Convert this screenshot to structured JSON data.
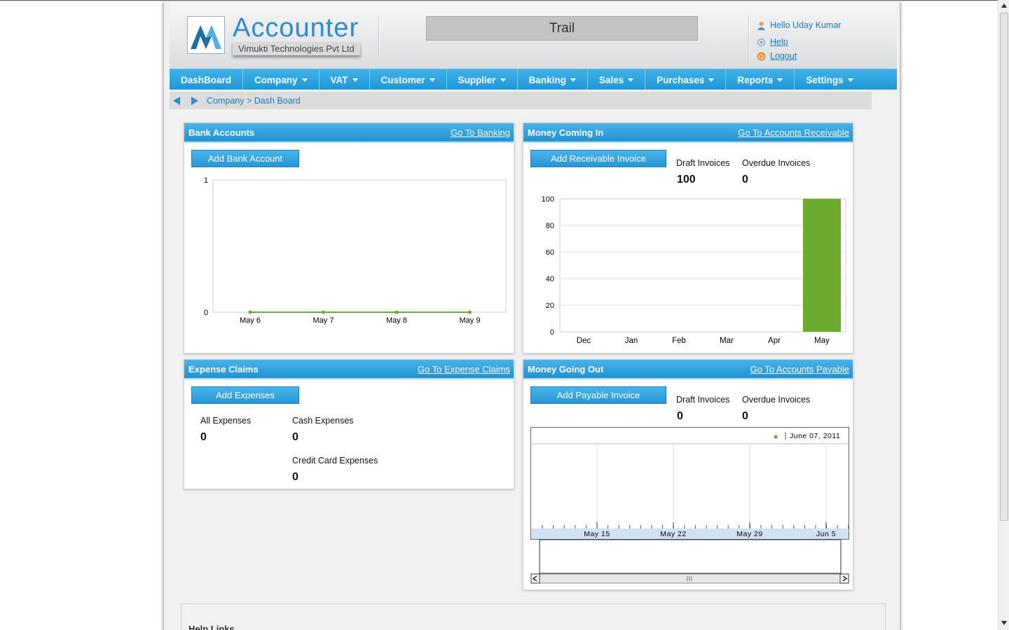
{
  "header": {
    "logo_title": "Accounter",
    "logo_subtitle": "Vimukti Technologies Pvt Ltd",
    "trail_label": "Trail",
    "greeting": "Hello Uday Kumar",
    "help_label": "Help",
    "logout_label": "Logout"
  },
  "nav": {
    "items": [
      "DashBoard",
      "Company",
      "VAT",
      "Customer",
      "Supplier",
      "Banking",
      "Sales",
      "Purchases",
      "Reports",
      "Settings"
    ]
  },
  "breadcrumb": {
    "text": "Company > Dash Board"
  },
  "bank_accounts": {
    "title": "Bank Accounts",
    "link": "Go To Banking",
    "button": "Add Bank Account"
  },
  "money_in": {
    "title": "Money Coming In",
    "link": "Go To Accounts Receivable",
    "button": "Add Receivable Invoice",
    "draft_label": "Draft Invoices",
    "draft_value": "100",
    "overdue_label": "Overdue Invoices",
    "overdue_value": "0"
  },
  "expense_claims": {
    "title": "Expense Claims",
    "link": "Go To Expense Claims",
    "button": "Add Expenses",
    "all_label": "All Expenses",
    "all_value": "0",
    "cash_label": "Cash Expenses",
    "cash_value": "0",
    "credit_label": "Credit Card Expenses",
    "credit_value": "0"
  },
  "money_out": {
    "title": "Money Going Out",
    "link": "Go To Accounts Payable",
    "button": "Add Payable Invoice",
    "draft_label": "Draft Invoices",
    "draft_value": "0",
    "overdue_label": "Overdue Invoices",
    "overdue_value": "0"
  },
  "help": {
    "title": "Help Links"
  },
  "colors": {
    "accent": "#2192d2",
    "series": "#6aaa2e",
    "link": "#1f7bb6"
  },
  "chart_data": [
    {
      "type": "line",
      "categories": [
        "May 6",
        "May 7",
        "May 8",
        "May 9"
      ],
      "values": [
        0,
        0,
        0,
        0
      ],
      "ylim": [
        0,
        1
      ],
      "yticks": [
        "1",
        "0"
      ],
      "grid": false
    },
    {
      "type": "bar",
      "categories": [
        "Dec",
        "Jan",
        "Feb",
        "Mar",
        "Apr",
        "May"
      ],
      "values": [
        0,
        0,
        0,
        0,
        0,
        100
      ],
      "ylim": [
        0,
        100
      ],
      "yticks": [
        "100",
        "80",
        "60",
        "40",
        "20",
        "0"
      ],
      "grid": true
    },
    {
      "type": "line",
      "categories": [
        "May 15",
        "May 22",
        "May 29",
        "Jun 5"
      ],
      "legend": "June 07, 2011",
      "legend_position": "top-right"
    }
  ]
}
